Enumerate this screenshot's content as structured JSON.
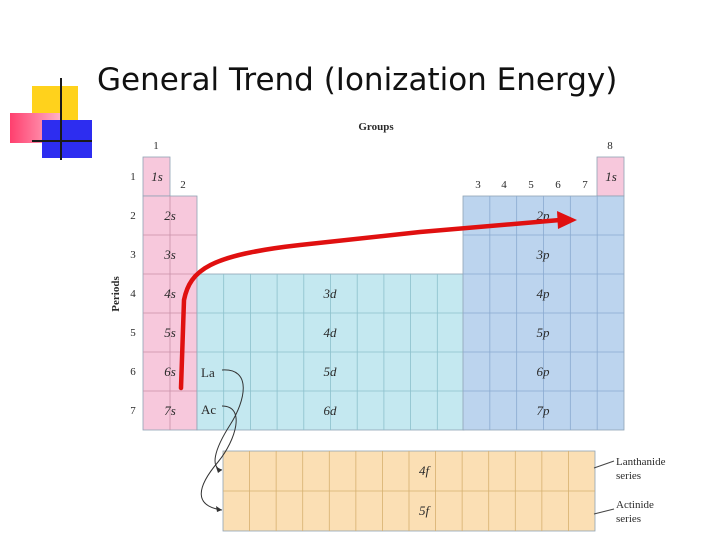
{
  "slide": {
    "title": "General Trend (Ionization Energy)"
  },
  "table": {
    "groups_heading": "Groups",
    "periods_heading": "Periods",
    "group_numbers": {
      "g1": "1",
      "g2": "2",
      "g3": "3",
      "g4": "4",
      "g5": "5",
      "g6": "6",
      "g7": "7",
      "g8": "8"
    },
    "period_numbers": [
      "1",
      "2",
      "3",
      "4",
      "5",
      "6",
      "7"
    ],
    "s_block": [
      "1s",
      "2s",
      "3s",
      "4s",
      "5s",
      "6s",
      "7s"
    ],
    "helium_block": "1s",
    "d_block": [
      "3d",
      "4d",
      "5d",
      "6d"
    ],
    "p_block": [
      "2p",
      "3p",
      "4p",
      "5p",
      "6p",
      "7p"
    ],
    "lanthanum": "La",
    "actinium": "Ac",
    "f_block": [
      "4f",
      "5f"
    ],
    "lanthanide_label": [
      "Lanthanide",
      "series"
    ],
    "actinide_label": [
      "Actinide",
      "series"
    ]
  },
  "colors": {
    "s_block": "#f7c8dc",
    "d_block": "#c4e8f0",
    "p_block": "#bcd4ee",
    "f_block": "#fbdfb4",
    "trend_arrow": "#e01010"
  }
}
